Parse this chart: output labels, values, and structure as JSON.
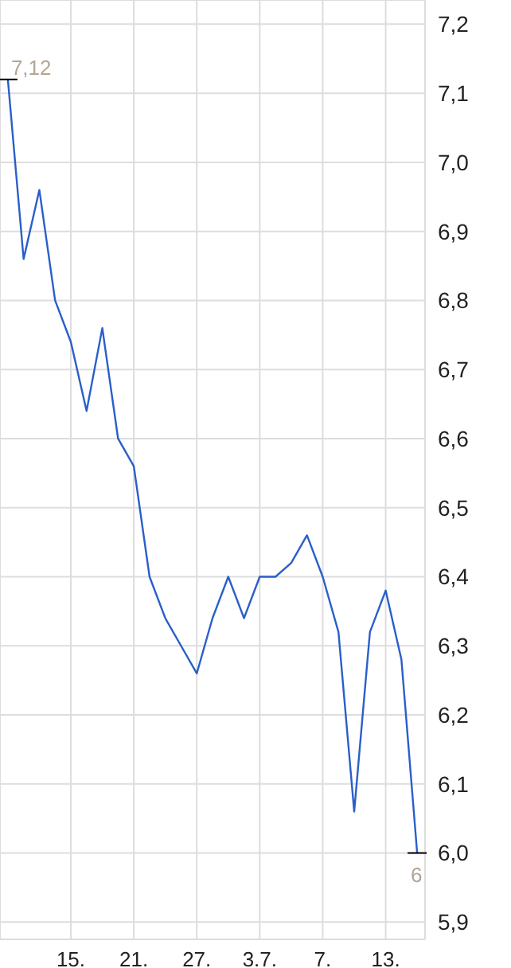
{
  "chart_data": {
    "type": "line",
    "categories": [
      null,
      null,
      null,
      null,
      "15.",
      null,
      null,
      null,
      "21.",
      null,
      null,
      null,
      "27.",
      null,
      null,
      null,
      "3.7.",
      null,
      null,
      null,
      "7.",
      null,
      null,
      null,
      "13.",
      null,
      null
    ],
    "series": [
      {
        "color": "#2a5fc9",
        "values": [
          7.12,
          6.86,
          6.96,
          6.8,
          6.74,
          6.64,
          6.76,
          6.6,
          6.56,
          6.4,
          6.34,
          6.3,
          6.26,
          6.34,
          6.4,
          6.34,
          6.4,
          6.4,
          6.42,
          6.46,
          6.4,
          6.32,
          6.06,
          6.32,
          6.38,
          6.28,
          6.0
        ],
        "value_labels": [
          "7,12",
          null,
          null,
          null,
          null,
          null,
          null,
          null,
          null,
          null,
          null,
          null,
          null,
          null,
          null,
          null,
          null,
          null,
          null,
          null,
          null,
          null,
          null,
          null,
          null,
          null,
          "6"
        ]
      }
    ],
    "ylim": [
      5.875,
      7.235
    ],
    "yticks": [
      {
        "value": 5.9,
        "label": "5,9"
      },
      {
        "value": 6.0,
        "label": "6,0"
      },
      {
        "value": 6.1,
        "label": "6,1"
      },
      {
        "value": 6.2,
        "label": "6,2"
      },
      {
        "value": 6.3,
        "label": "6,3"
      },
      {
        "value": 6.4,
        "label": "6,4"
      },
      {
        "value": 6.5,
        "label": "6,5"
      },
      {
        "value": 6.6,
        "label": "6,6"
      },
      {
        "value": 6.7,
        "label": "6,7"
      },
      {
        "value": 6.8,
        "label": "6,8"
      },
      {
        "value": 6.9,
        "label": "6,9"
      },
      {
        "value": 7.0,
        "label": "7,0"
      },
      {
        "value": 7.1,
        "label": "7,1"
      },
      {
        "value": 7.2,
        "label": "7,2"
      }
    ],
    "grid": true,
    "legend": false,
    "marker": "none",
    "line_style": "solid"
  }
}
